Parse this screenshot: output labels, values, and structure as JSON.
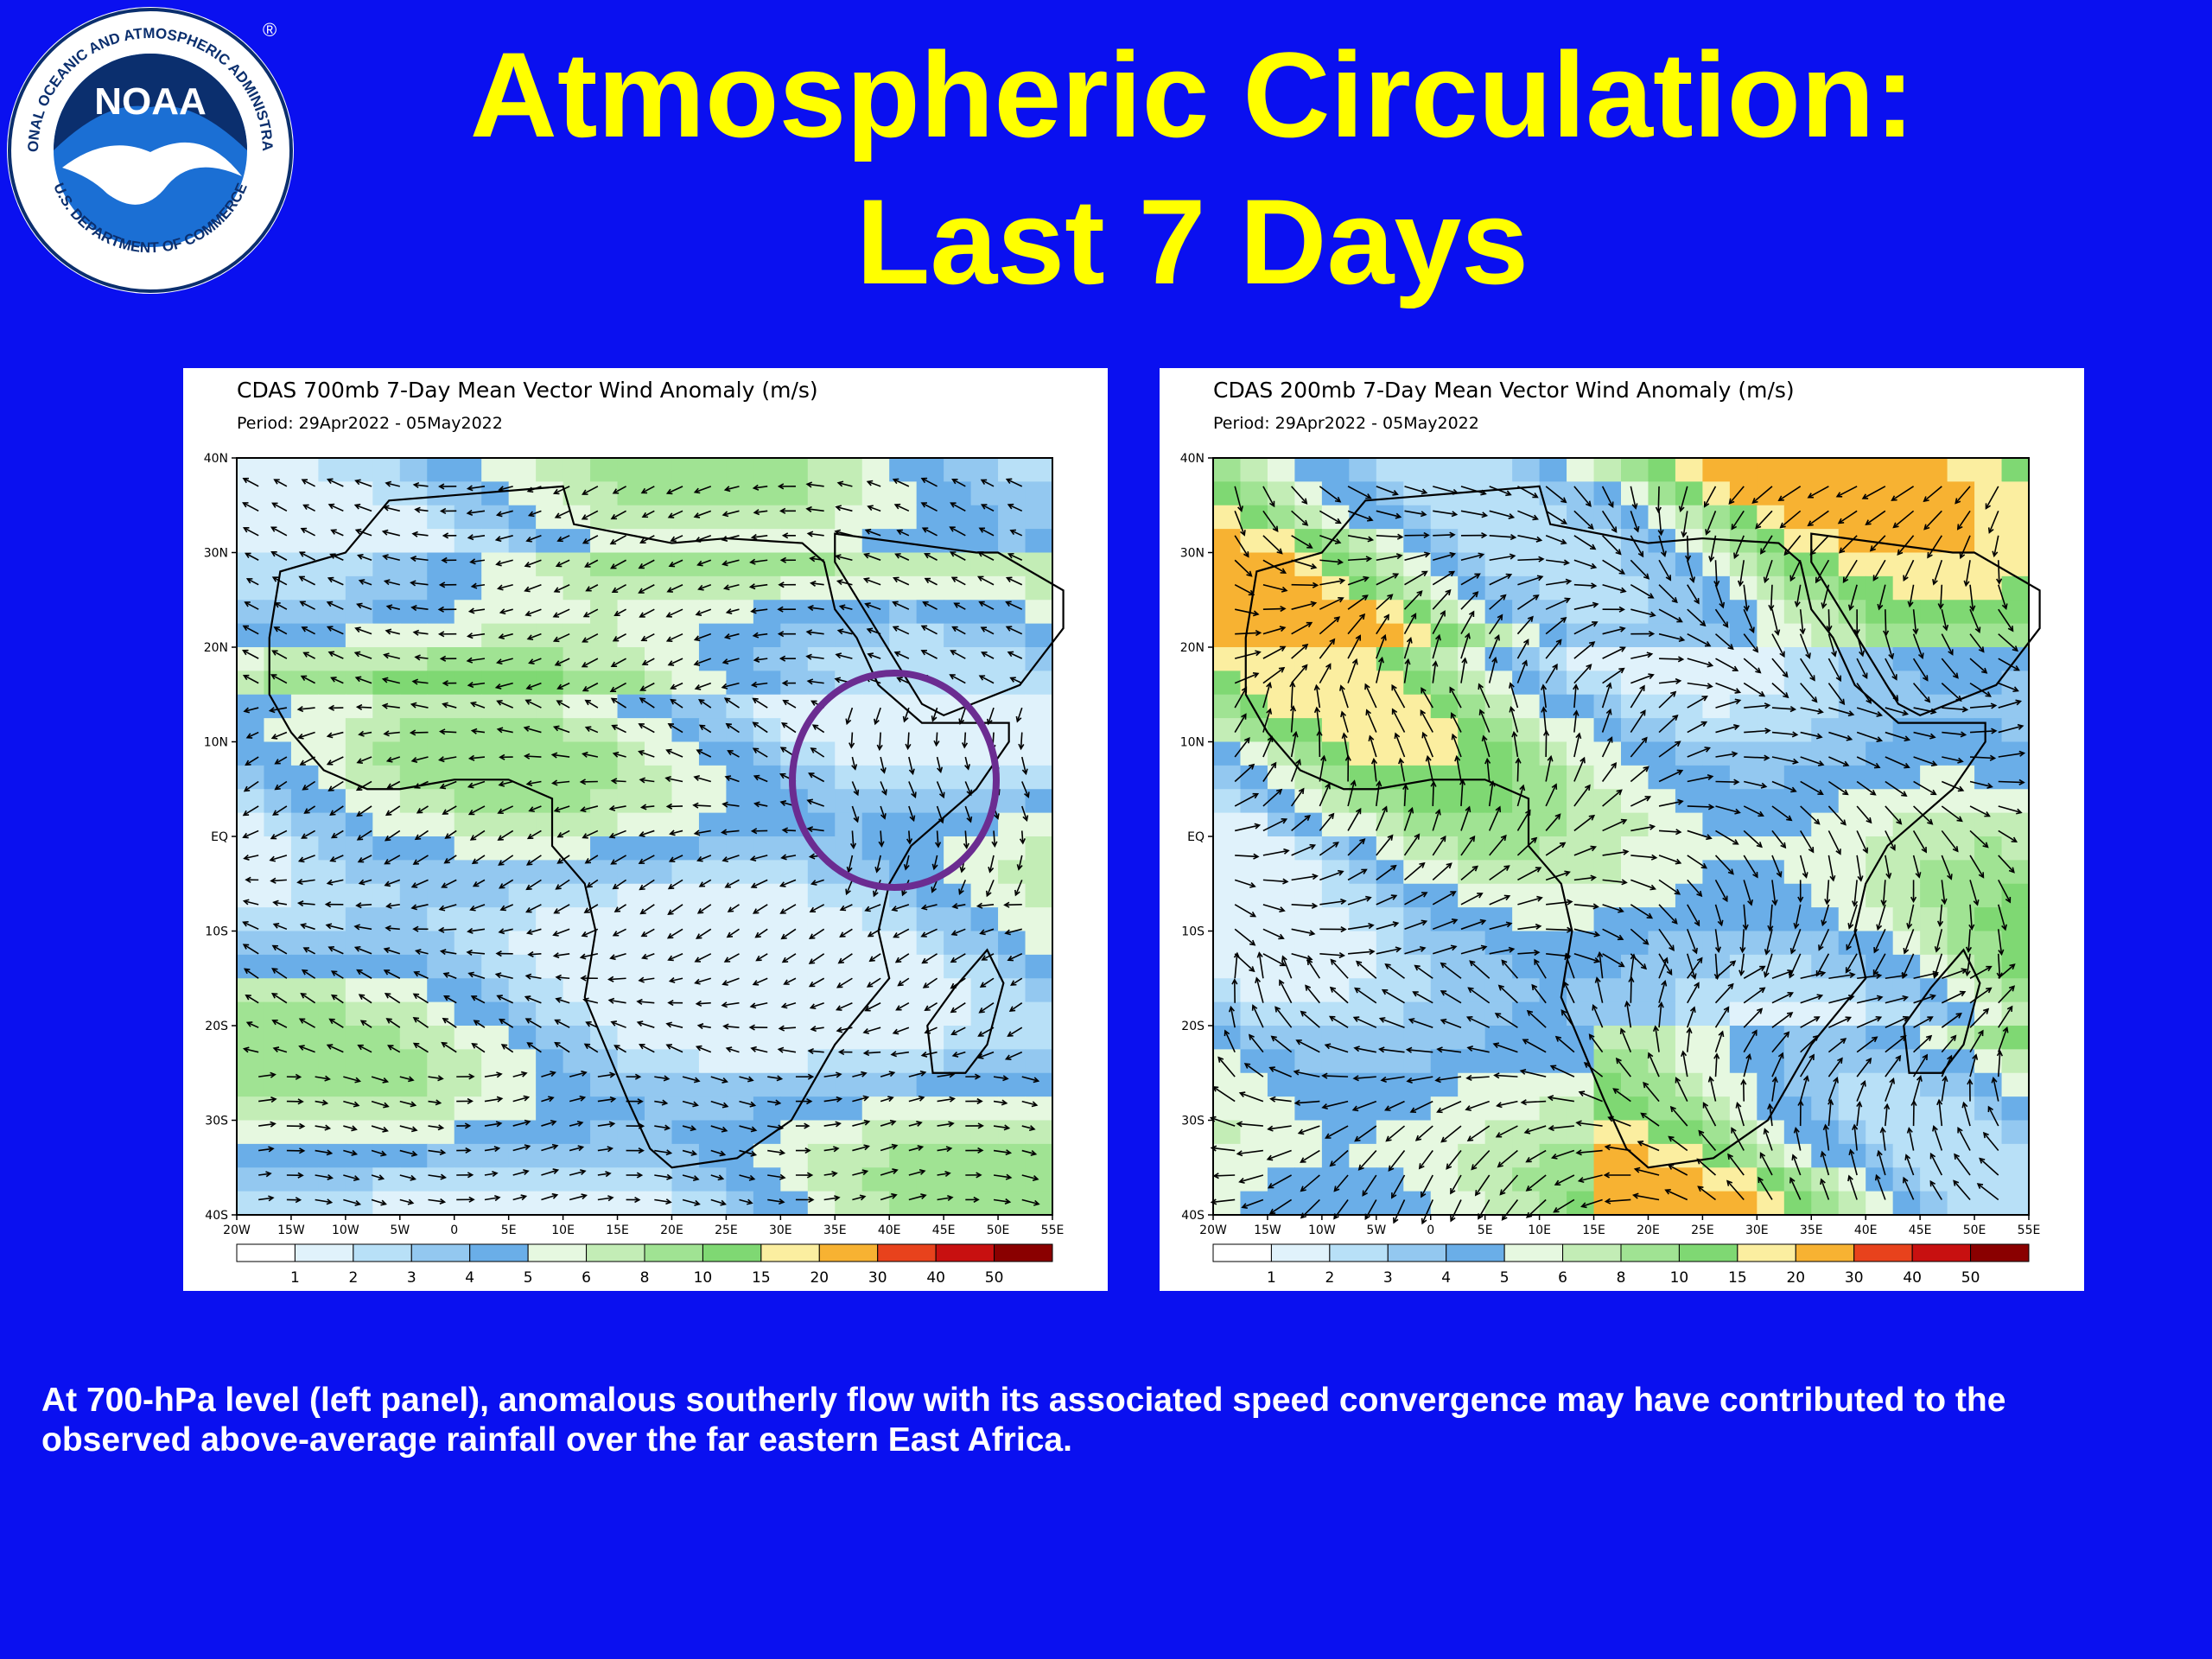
{
  "slide": {
    "title_line1": "Atmospheric Circulation:",
    "title_line2": "Last 7 Days",
    "caption": "At 700-hPa level (left panel), anomalous southerly flow with its associated speed convergence may have contributed to the observed above-average rainfall over the far eastern East Africa.",
    "background_color": "#0a10f0",
    "title_color": "#ffff00",
    "caption_color": "#ffffff"
  },
  "logo": {
    "center_text": "NOAA",
    "ring_text": "NATIONAL OCEANIC AND ATMOSPHERIC ADMINISTRATION",
    "bottom_text": "U.S. DEPARTMENT OF COMMERCE",
    "registered": "®"
  },
  "maps": [
    {
      "title": "CDAS 700mb 7-Day Mean Vector Wind Anomaly (m/s)",
      "period": "Period: 29Apr2022 - 05May2022",
      "highlight": "circle over East Africa (eastern Ethiopia, Somalia, Kenya)"
    },
    {
      "title": "CDAS 200mb 7-Day Mean Vector Wind Anomaly (m/s)",
      "period": "Period: 29Apr2022 - 05May2022"
    }
  ],
  "axes": {
    "lat_labels": [
      "40N",
      "30N",
      "20N",
      "10N",
      "EQ",
      "10S",
      "20S",
      "30S",
      "40S"
    ],
    "lon_labels": [
      "20W",
      "15W",
      "10W",
      "5W",
      "0",
      "5E",
      "10E",
      "15E",
      "20E",
      "25E",
      "30E",
      "35E",
      "40E",
      "45E",
      "50E",
      "55E"
    ]
  },
  "colorbar": {
    "labels": [
      "1",
      "2",
      "3",
      "4",
      "5",
      "6",
      "8",
      "10",
      "15",
      "20",
      "30",
      "40",
      "50"
    ],
    "colors": [
      "#ffffff",
      "#e0f2fb",
      "#b8e0f7",
      "#93c8f0",
      "#6aaee8",
      "#e6f8e0",
      "#c3edb6",
      "#a0e393",
      "#7fd873",
      "#fbeea0",
      "#f7b232",
      "#e8421c",
      "#c81010",
      "#8a0000"
    ]
  }
}
